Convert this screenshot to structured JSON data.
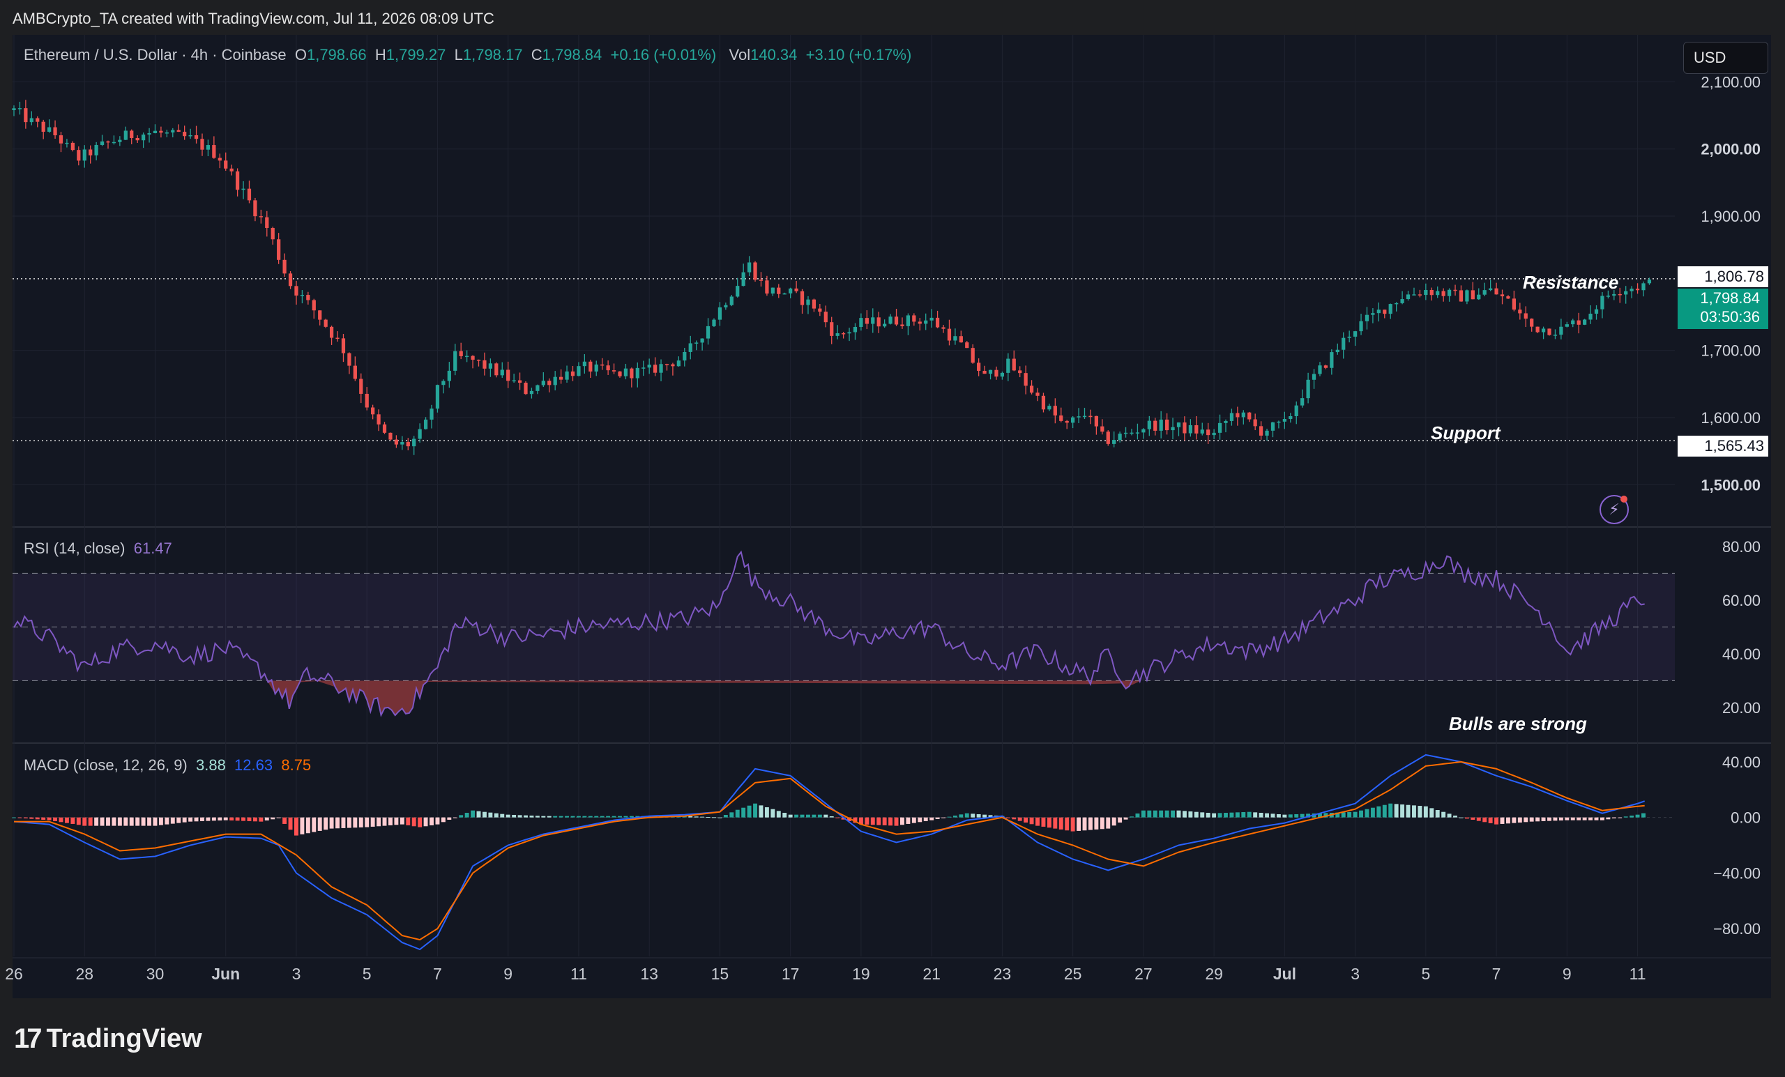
{
  "header": {
    "created_line": "AMBCrypto_TA created with TradingView.com, Jul 11, 2026 08:09 UTC"
  },
  "symbol": {
    "name": "Ethereum / U.S. Dollar · 4h · Coinbase",
    "open_label": "O",
    "open": "1,798.66",
    "high_label": "H",
    "high": "1,799.27",
    "low_label": "L",
    "low": "1,798.17",
    "close_label": "C",
    "close": "1,798.84",
    "change": "+0.16 (+0.01%)",
    "vol_label": "Vol",
    "vol": "140.34",
    "vol_change": "+3.10 (+0.17%)"
  },
  "currency_button": "USD",
  "annotations": {
    "resistance": "Resistance",
    "support": "Support",
    "rsi_note": "Bulls are strong"
  },
  "price_tags": {
    "resistance_level": "1,806.78",
    "last_price": "1,798.84",
    "countdown": "03:50:36",
    "support_level": "1,565.43"
  },
  "rsi": {
    "label": "RSI (14, close)",
    "value": "61.47"
  },
  "macd": {
    "label": "MACD (close, 12, 26, 9)",
    "hist": "3.88",
    "macd": "12.63",
    "signal": "8.75"
  },
  "colors": {
    "up": "#26a69a",
    "down": "#ef5350",
    "rsi": "#7e57c2",
    "macd": "#2962ff",
    "signal": "#ff6d00",
    "bg": "#131722"
  },
  "footer": {
    "brand": "TradingView",
    "logo_icon": "tradingview-logo-icon"
  },
  "chart_data": [
    {
      "type": "candlestick",
      "title": "Ethereum / U.S. Dollar · 4h · Coinbase",
      "y_ticks": [
        "2,100.00",
        "2,000.00",
        "1,900.00",
        "1,700.00",
        "1,600.00",
        "1,500.00"
      ],
      "y_tick_values": [
        2100,
        2000,
        1900,
        1700,
        1600,
        1500
      ],
      "ylim": [
        1438,
        2170
      ],
      "x_ticks": [
        "26",
        "28",
        "30",
        "Jun",
        "3",
        "5",
        "7",
        "9",
        "11",
        "13",
        "15",
        "17",
        "19",
        "21",
        "23",
        "25",
        "27",
        "29",
        "Jul",
        "3",
        "5",
        "7",
        "9",
        "11"
      ],
      "x_tick_days": [
        0,
        2,
        4,
        6,
        8,
        10,
        12,
        14,
        16,
        18,
        20,
        22,
        24,
        26,
        28,
        30,
        32,
        34,
        36,
        38,
        40,
        42,
        44,
        46
      ],
      "xlim_days": [
        0,
        46.7
      ],
      "resistance": 1806.78,
      "support": 1565.43,
      "close_path": {
        "day": [
          -0.2,
          0.5,
          1.2,
          1.8,
          2.5,
          3.2,
          4.0,
          5.0,
          5.8,
          6.5,
          7.2,
          7.8,
          8.5,
          9.3,
          10.2,
          10.7,
          11.2,
          11.6,
          12.0,
          12.5,
          13.0,
          13.8,
          14.5,
          15.3,
          16.2,
          17.0,
          18.0,
          19.0,
          19.7,
          20.5,
          20.8,
          21.3,
          22.0,
          22.7,
          23.3,
          24.0,
          25.0,
          26.0,
          26.8,
          27.5,
          28.2,
          29.0,
          29.8,
          30.3,
          30.9,
          31.5,
          32.2,
          33.0,
          34.0,
          34.6,
          35.3,
          36.0,
          36.6,
          37.3,
          37.9,
          38.6,
          39.3,
          40.0,
          41.0,
          41.8,
          42.3,
          43.0,
          43.8,
          44.5,
          45.3,
          46.0,
          46.3
        ],
        "close": [
          2065,
          2040,
          2020,
          1985,
          2005,
          2020,
          2025,
          2015,
          1990,
          1935,
          1880,
          1800,
          1760,
          1705,
          1595,
          1560,
          1560,
          1580,
          1640,
          1690,
          1685,
          1665,
          1640,
          1660,
          1675,
          1665,
          1670,
          1690,
          1740,
          1800,
          1830,
          1790,
          1785,
          1765,
          1720,
          1740,
          1745,
          1745,
          1710,
          1660,
          1680,
          1630,
          1585,
          1610,
          1565,
          1575,
          1590,
          1585,
          1575,
          1610,
          1580,
          1590,
          1645,
          1690,
          1730,
          1755,
          1780,
          1790,
          1780,
          1790,
          1775,
          1735,
          1730,
          1750,
          1790,
          1795,
          1799
        ]
      }
    },
    {
      "type": "line",
      "title": "RSI (14, close)",
      "y_ticks": [
        "80.00",
        "60.00",
        "40.00",
        "20.00"
      ],
      "y_tick_values": [
        80,
        60,
        40,
        20
      ],
      "ylim": [
        7,
        87
      ],
      "bands": [
        70,
        50,
        30
      ],
      "path": {
        "day": [
          0,
          1,
          2,
          3,
          4,
          5,
          6,
          7,
          7.8,
          8.3,
          9,
          10,
          10.8,
          11.3,
          12,
          12.5,
          13,
          14,
          15,
          16,
          17,
          18,
          19,
          20,
          20.5,
          21,
          22,
          23,
          24,
          25,
          26,
          27,
          28,
          29,
          30,
          30.5,
          31,
          31.5,
          32,
          33,
          34,
          35,
          36,
          37,
          38,
          38.5,
          39,
          40,
          40.5,
          41,
          42,
          43,
          43.5,
          44,
          45,
          46,
          46.3
        ],
        "value": [
          53,
          46,
          35,
          42,
          44,
          39,
          42,
          34,
          22,
          32,
          29,
          22,
          18,
          22,
          35,
          50,
          51,
          46,
          47,
          50,
          51,
          52,
          53,
          58,
          78,
          66,
          59,
          50,
          44,
          48,
          50,
          40,
          36,
          41,
          34,
          32,
          40,
          30,
          33,
          39,
          44,
          41,
          45,
          53,
          60,
          66,
          68,
          72,
          76,
          70,
          68,
          58,
          52,
          41,
          50,
          60,
          61.47
        ]
      }
    },
    {
      "type": "line",
      "title": "MACD (close, 12, 26, 9)",
      "y_ticks": [
        "40.00",
        "0.00",
        "−40.00",
        "−80.00"
      ],
      "y_tick_values": [
        40,
        0,
        -40,
        -80
      ],
      "ylim": [
        -100,
        53
      ],
      "series": [
        {
          "name": "MACD",
          "day": [
            0,
            1,
            2,
            3,
            4,
            5,
            6,
            7,
            7.5,
            8,
            9,
            10,
            11,
            11.5,
            12,
            12.5,
            13,
            14,
            15,
            16,
            17,
            18,
            19,
            20,
            20.5,
            21,
            22,
            23,
            24,
            25,
            26,
            27,
            28,
            29,
            30,
            31,
            32,
            33,
            34,
            35,
            36,
            37,
            38,
            39,
            40,
            41,
            42,
            43,
            44,
            45,
            46,
            46.3
          ],
          "value": [
            -3,
            -5,
            -18,
            -30,
            -28,
            -20,
            -14,
            -15,
            -20,
            -40,
            -58,
            -70,
            -90,
            -95,
            -85,
            -60,
            -35,
            -20,
            -12,
            -7,
            -2,
            1,
            2,
            4,
            20,
            35,
            30,
            10,
            -10,
            -18,
            -12,
            -2,
            1,
            -18,
            -30,
            -38,
            -30,
            -20,
            -15,
            -8,
            -4,
            3,
            10,
            30,
            45,
            40,
            30,
            22,
            12,
            3,
            10,
            12.63
          ]
        },
        {
          "name": "Signal",
          "day": [
            0,
            1,
            2,
            3,
            4,
            5,
            6,
            7,
            8,
            9,
            10,
            11,
            11.5,
            12,
            12.5,
            13,
            14,
            15,
            16,
            17,
            18,
            19,
            20,
            21,
            22,
            23,
            24,
            25,
            26,
            27,
            28,
            29,
            30,
            31,
            32,
            33,
            34,
            35,
            36,
            37,
            38,
            39,
            40,
            41,
            42,
            43,
            44,
            45,
            46,
            46.3
          ],
          "value": [
            -3,
            -3,
            -12,
            -24,
            -22,
            -17,
            -12,
            -12,
            -27,
            -50,
            -63,
            -85,
            -88,
            -80,
            -60,
            -40,
            -22,
            -13,
            -8,
            -3,
            0,
            1,
            4,
            25,
            28,
            8,
            -5,
            -12,
            -10,
            -5,
            0,
            -12,
            -20,
            -30,
            -35,
            -25,
            -18,
            -12,
            -6,
            0,
            6,
            20,
            37,
            40,
            35,
            25,
            14,
            5,
            8,
            8.75
          ]
        }
      ]
    }
  ]
}
